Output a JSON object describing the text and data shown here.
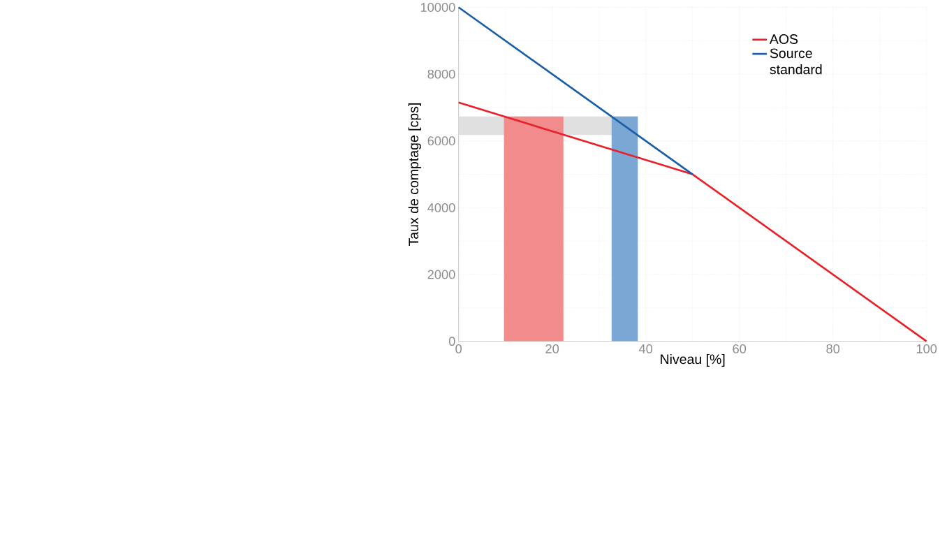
{
  "chart_data": {
    "type": "line",
    "xlabel": "Niveau [%]",
    "ylabel": "Taux de comptage [cps]",
    "x": [
      0,
      50,
      100
    ],
    "series": [
      {
        "name": "AOS",
        "color": "#e8202a",
        "values": [
          7150,
          5000,
          0
        ]
      },
      {
        "name": "Source standard",
        "color": "#1a5ea8",
        "x": [
          0,
          50
        ],
        "values": [
          10000,
          5000
        ]
      }
    ],
    "bands": [
      {
        "axis": "y",
        "from": 6180,
        "to": 6730,
        "color": "#e0e0e0"
      },
      {
        "axis": "x",
        "from": 9.7,
        "to": 22.4,
        "color": "#f28b8b"
      },
      {
        "axis": "x",
        "from": 32.7,
        "to": 38.3,
        "color": "#7ba7d4"
      }
    ],
    "xlim": [
      0,
      100
    ],
    "xticks": [
      0,
      20,
      40,
      60,
      80,
      100
    ],
    "ylim": [
      0,
      10000
    ],
    "yticks": [
      0,
      2000,
      4000,
      6000,
      8000,
      10000
    ],
    "grid": true,
    "legend": "top right",
    "marker": "none",
    "line_style": "solid"
  }
}
